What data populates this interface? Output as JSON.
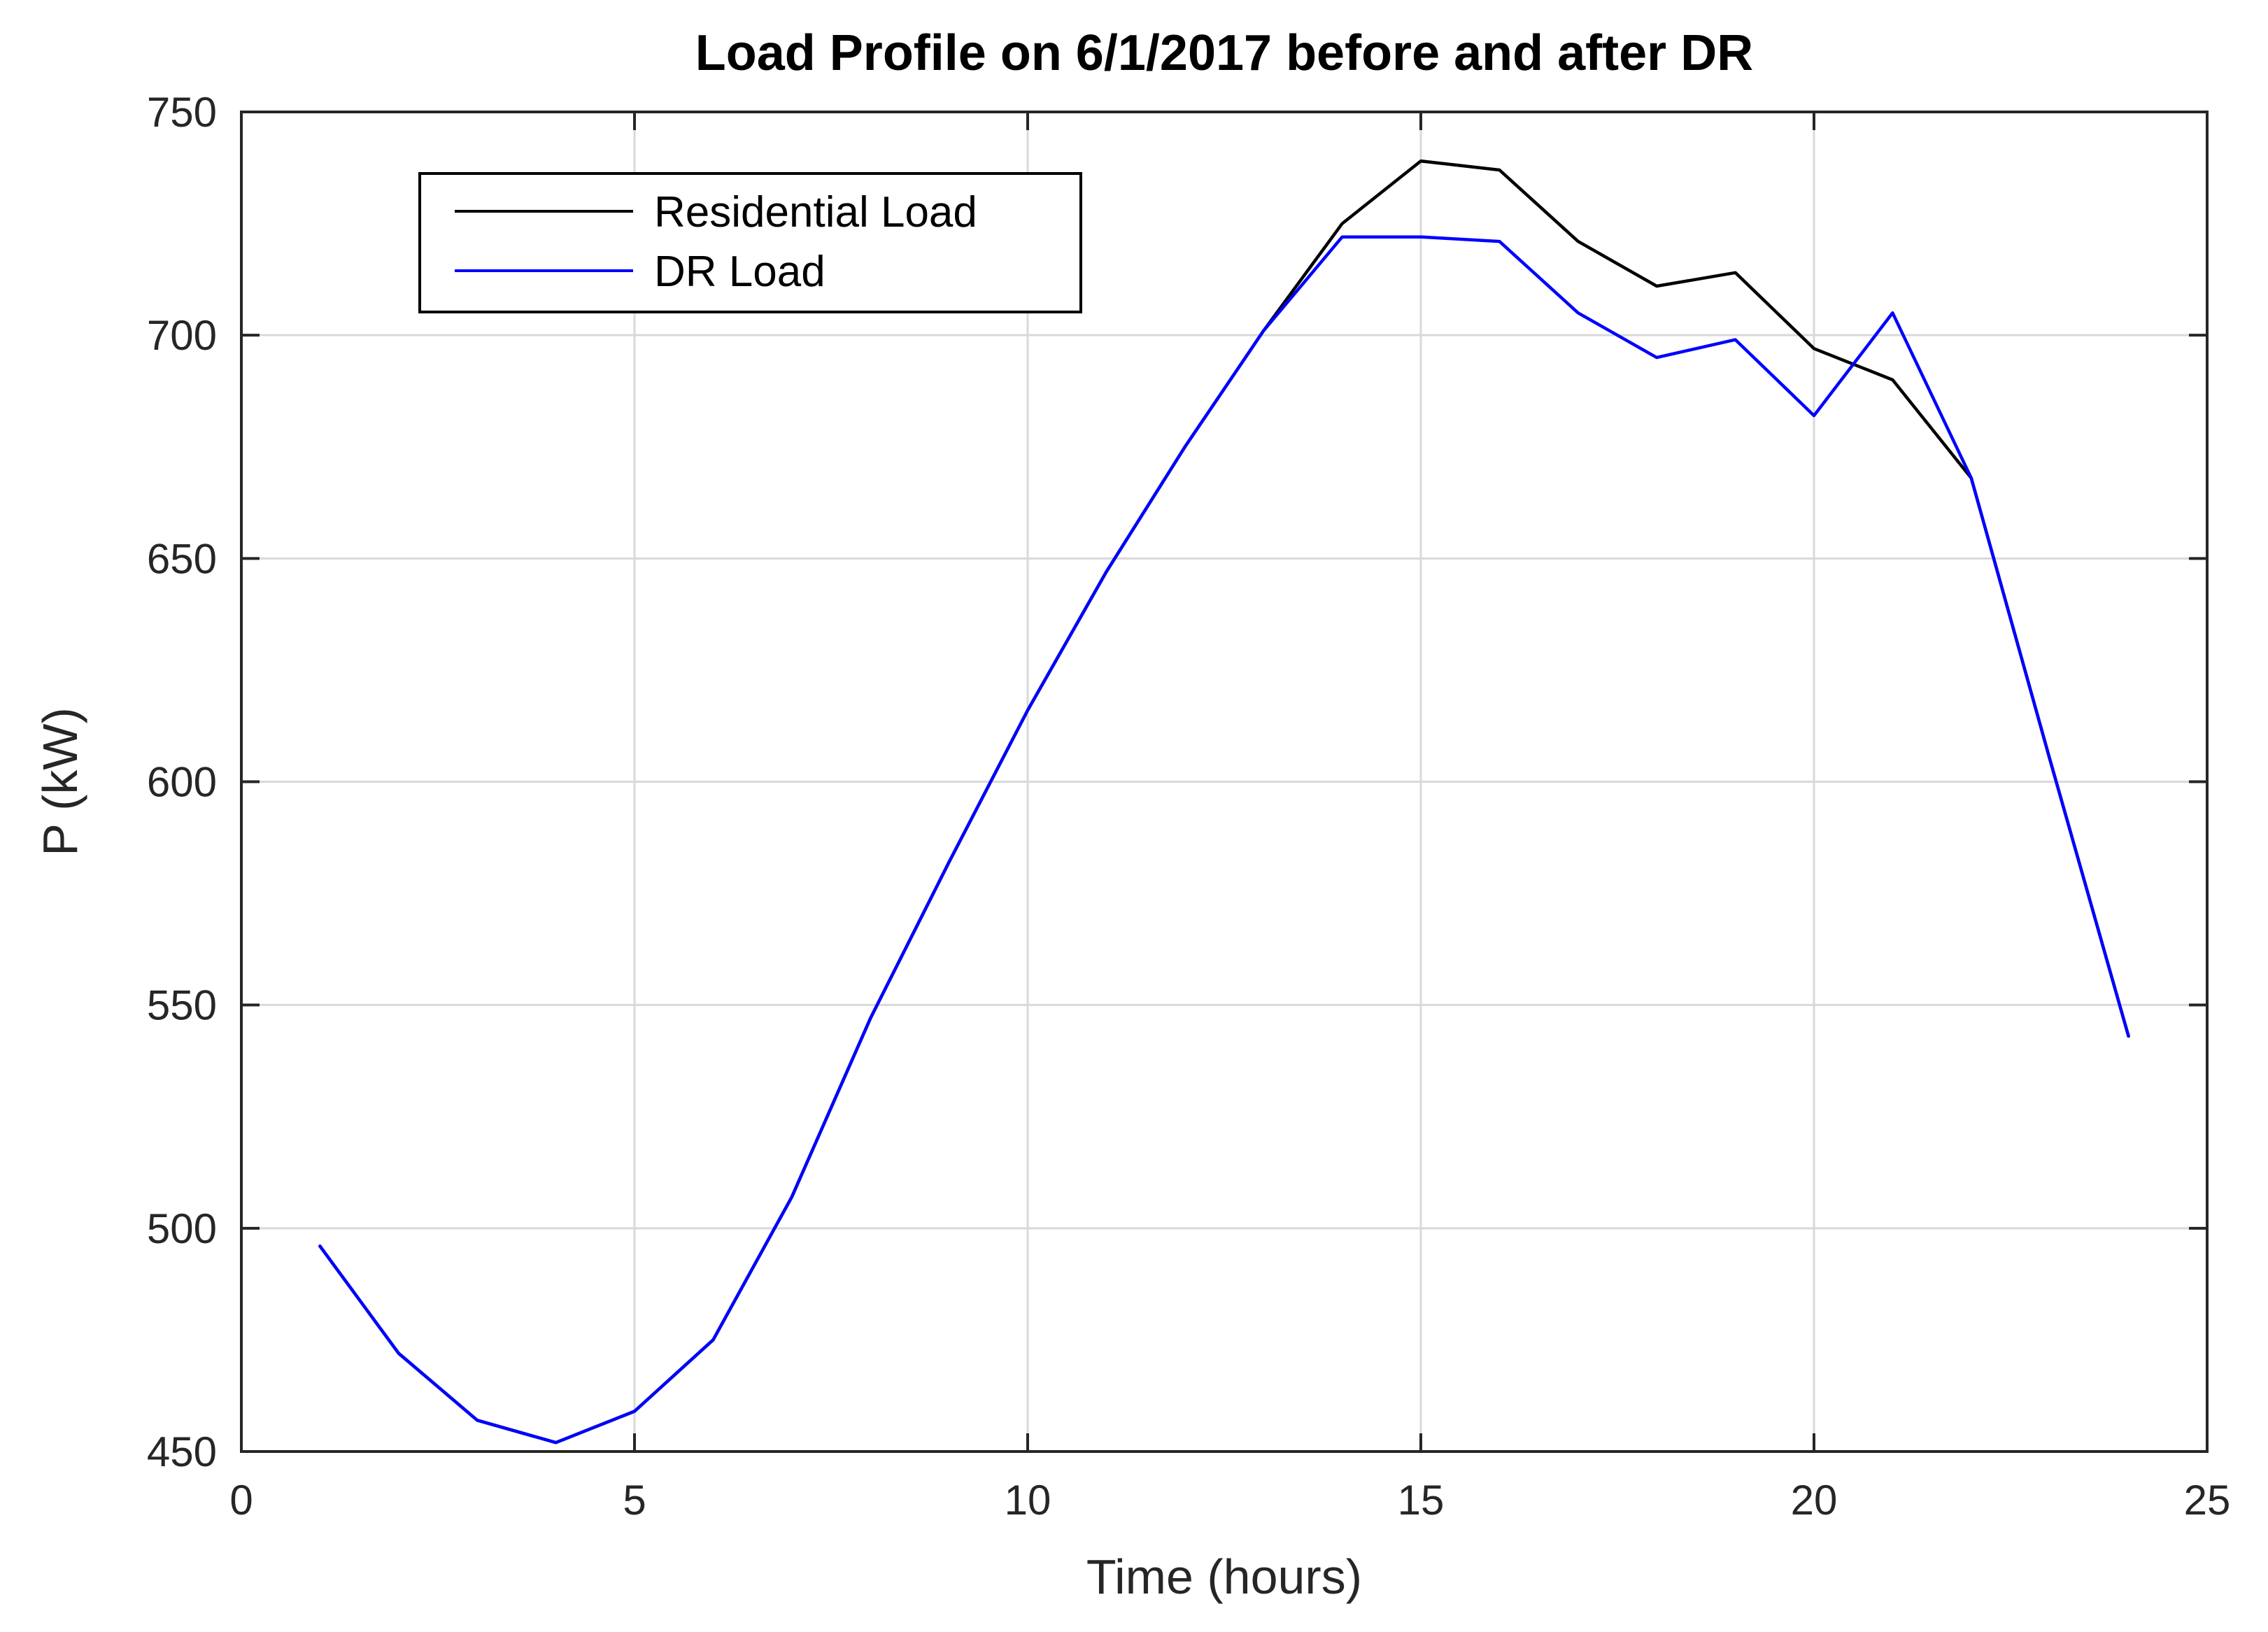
{
  "colors": {
    "residential": "#000000",
    "dr": "#0000ff",
    "grid": "#d9d9d9",
    "axes": "#262626",
    "background": "#ffffff"
  },
  "chart_data": {
    "type": "line",
    "title": "Load Profile on 6/1/2017 before and after DR",
    "xlabel": "Time (hours)",
    "ylabel": "P (kW)",
    "xlim": [
      0,
      25
    ],
    "ylim": [
      450,
      750
    ],
    "xticks": [
      "0",
      "5",
      "10",
      "15",
      "20",
      "25"
    ],
    "yticks": [
      "450",
      "500",
      "550",
      "600",
      "650",
      "700",
      "750"
    ],
    "grid": true,
    "legend_position": "top-left",
    "x": [
      1,
      2,
      3,
      4,
      5,
      6,
      7,
      8,
      9,
      10,
      11,
      12,
      13,
      14,
      15,
      16,
      17,
      18,
      19,
      20,
      21,
      22,
      23,
      24
    ],
    "series": [
      {
        "name": "Residential Load",
        "color": "#000000",
        "values": [
          496,
          472,
          457,
          452,
          459,
          475,
          507,
          547,
          582,
          616,
          647,
          675,
          701,
          725,
          739,
          737,
          721,
          711,
          714,
          697,
          690,
          668,
          605,
          543
        ]
      },
      {
        "name": "DR Load",
        "color": "#0000ff",
        "values": [
          496,
          472,
          457,
          452,
          459,
          475,
          507,
          547,
          582,
          616,
          647,
          675,
          701,
          722,
          722,
          721,
          705,
          695,
          699,
          682,
          705,
          668,
          605,
          543
        ]
      }
    ]
  }
}
